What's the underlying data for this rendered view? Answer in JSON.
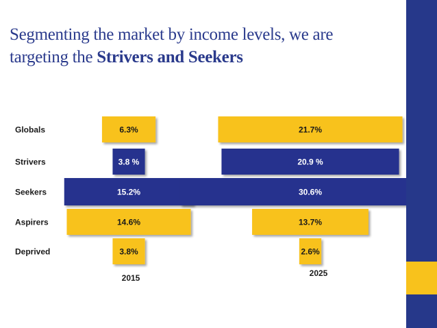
{
  "slide": {
    "title_line1": "Segmenting the market by income levels, we are",
    "title_line2_plain": "targeting the ",
    "title_line2_bold": "Strivers and Seekers"
  },
  "colors": {
    "yellow": "#F8C21C",
    "blue": "#26338E",
    "sidebar_blue": "#26388A",
    "sidebar_yellow": "#F8C21C"
  },
  "chart_data": {
    "type": "bar",
    "categories": [
      "Globals",
      "Strivers",
      "Seekers",
      "Aspirers",
      "Deprived"
    ],
    "series": [
      {
        "name": "2015",
        "values": [
          6.3,
          3.8,
          15.2,
          14.6,
          3.8
        ],
        "labels": [
          "6.3%",
          "3.8 %",
          "15.2%",
          "14.6%",
          "3.8%"
        ]
      },
      {
        "name": "2025",
        "values": [
          21.7,
          20.9,
          30.6,
          13.7,
          2.6
        ],
        "labels": [
          "21.7%",
          "20.9 %",
          "30.6%",
          "13.7%",
          "2.6%"
        ]
      }
    ],
    "bar_colors": [
      "yellow",
      "blue",
      "blue",
      "yellow",
      "yellow"
    ]
  }
}
